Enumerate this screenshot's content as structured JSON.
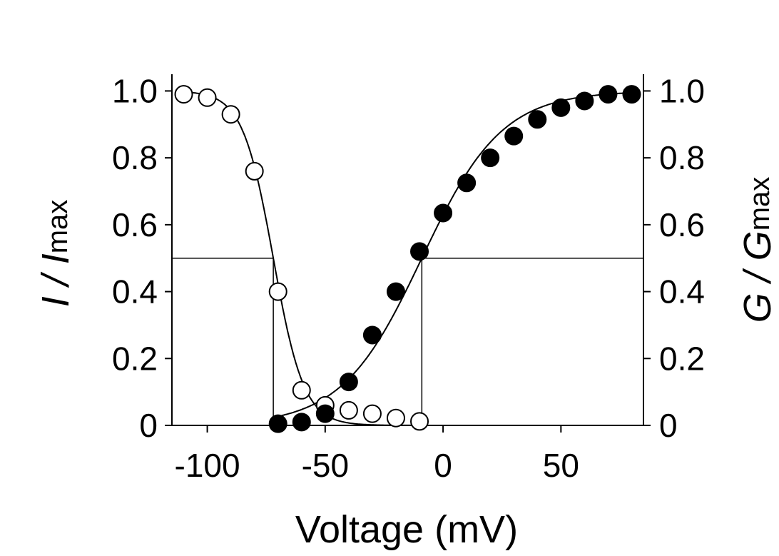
{
  "chart_data": {
    "type": "scatter",
    "xlabel": "Voltage (mV)",
    "ylabel_left": {
      "main": "I / I",
      "sub": "max"
    },
    "ylabel_right": {
      "main": "G / G",
      "sub": "max"
    },
    "xlim": [
      -115,
      85
    ],
    "ylim": [
      0,
      1.05
    ],
    "x_ticks": [
      -100,
      -50,
      0,
      50
    ],
    "x_tick_labels": [
      "-100",
      "-50",
      "0",
      "50"
    ],
    "y_ticks": [
      0,
      0.2,
      0.4,
      0.6,
      0.8,
      1.0
    ],
    "y_tick_labels": [
      "0",
      "0.2",
      "0.4",
      "0.6",
      "0.8",
      "1.0"
    ],
    "half_line_y": 0.5,
    "v_half_inactivation": -72,
    "v_half_activation": -9,
    "series": [
      {
        "marker": "open",
        "x": [
          -110,
          -100,
          -90,
          -80,
          -70,
          -60,
          -50,
          -40,
          -30,
          -20,
          -10
        ],
        "y": [
          0.99,
          0.98,
          0.93,
          0.76,
          0.4,
          0.105,
          0.06,
          0.045,
          0.035,
          0.022,
          0.012
        ],
        "fit": {
          "kind": "boltzmann_decay",
          "v_half": -72,
          "slope": 6.5
        }
      },
      {
        "marker": "filled",
        "x": [
          -70,
          -60,
          -50,
          -40,
          -30,
          -20,
          -10,
          0,
          10,
          20,
          30,
          40,
          50,
          60,
          70,
          80
        ],
        "y": [
          0.005,
          0.01,
          0.035,
          0.13,
          0.27,
          0.4,
          0.52,
          0.635,
          0.725,
          0.8,
          0.865,
          0.915,
          0.95,
          0.97,
          0.99,
          0.99
        ],
        "fit": {
          "kind": "boltzmann_rise",
          "v_half": -9,
          "slope": 17,
          "x_start": -72,
          "x_end": 80
        }
      }
    ]
  }
}
